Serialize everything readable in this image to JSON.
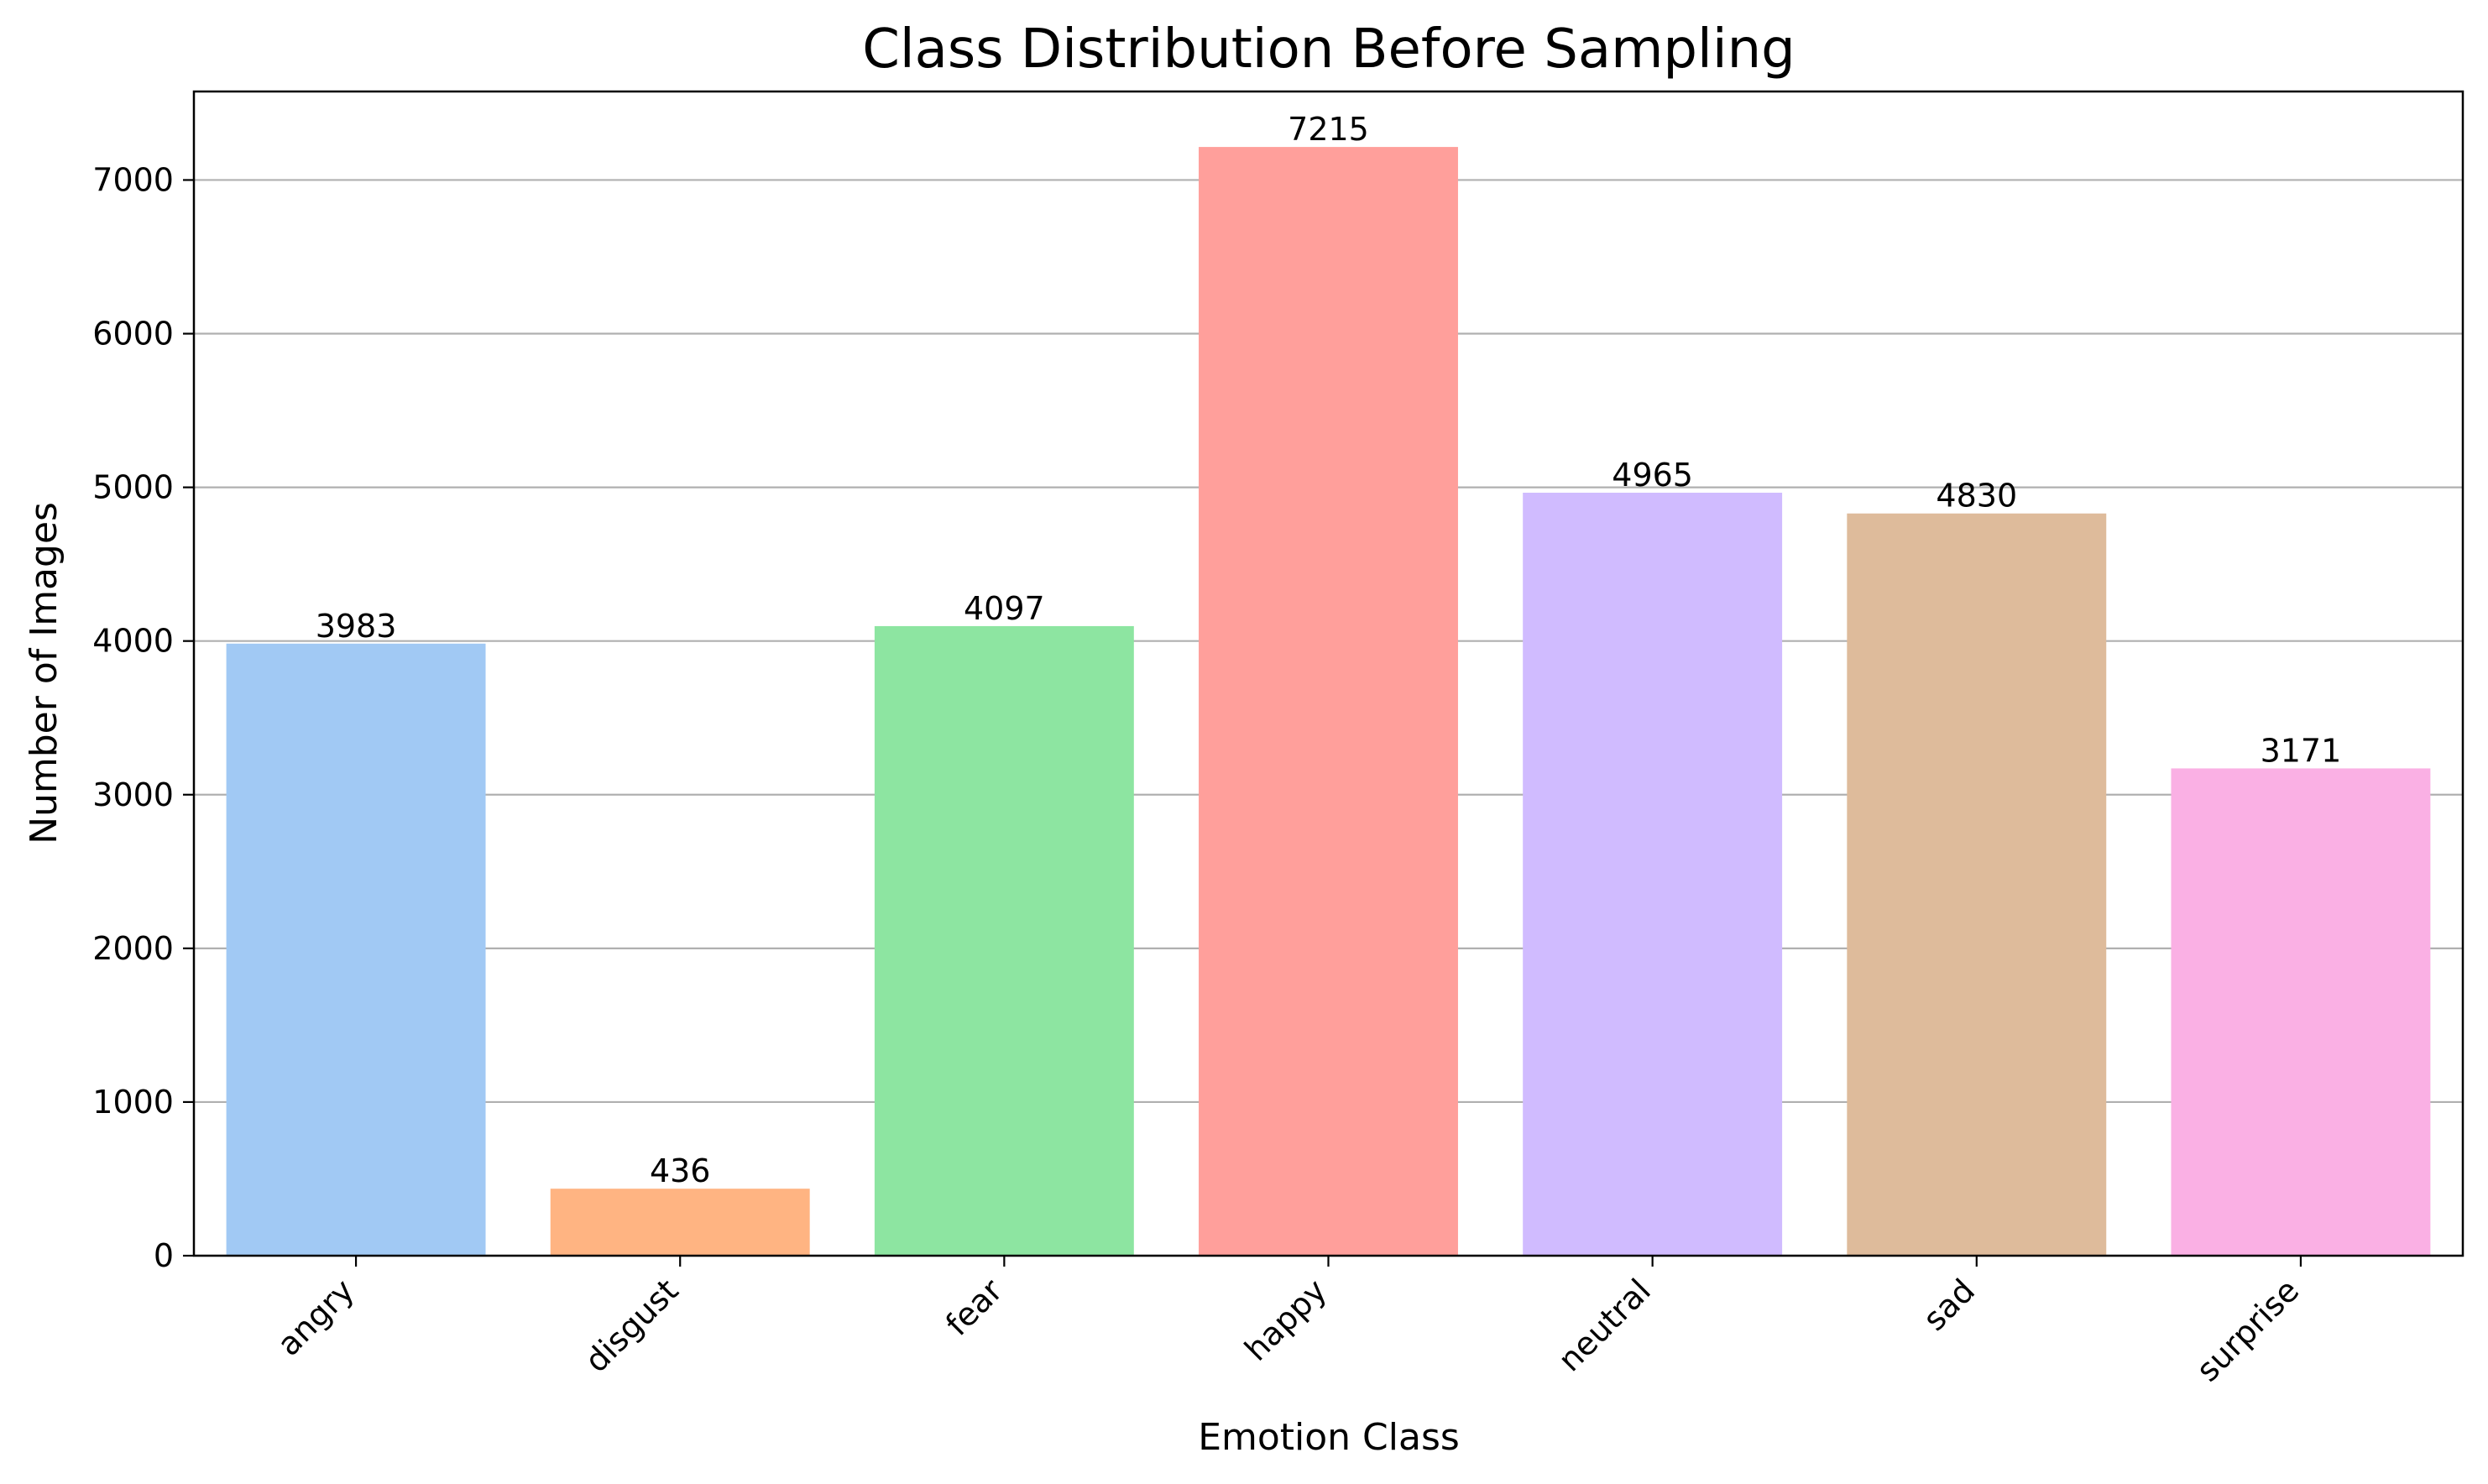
{
  "chart_data": {
    "type": "bar",
    "title": "Class Distribution Before Sampling",
    "xlabel": "Emotion Class",
    "ylabel": "Number of Images",
    "categories": [
      "angry",
      "disgust",
      "fear",
      "happy",
      "neutral",
      "sad",
      "surprise"
    ],
    "values": [
      3983,
      436,
      4097,
      7215,
      4965,
      4830,
      3171
    ],
    "data_labels": [
      "3983",
      "436",
      "4097",
      "7215",
      "4965",
      "4830",
      "3171"
    ],
    "colors": [
      "#a1c9f4",
      "#ffb482",
      "#8de5a1",
      "#ff9f9b",
      "#d0bbff",
      "#debb9b",
      "#fab0e4"
    ],
    "ylim": [
      0,
      7576
    ],
    "yticks": [
      0,
      1000,
      2000,
      3000,
      4000,
      5000,
      6000,
      7000
    ],
    "ytick_labels": [
      "0",
      "1000",
      "2000",
      "3000",
      "4000",
      "5000",
      "6000",
      "7000"
    ],
    "grid": "y-axis horizontal lines",
    "legend": "none"
  }
}
